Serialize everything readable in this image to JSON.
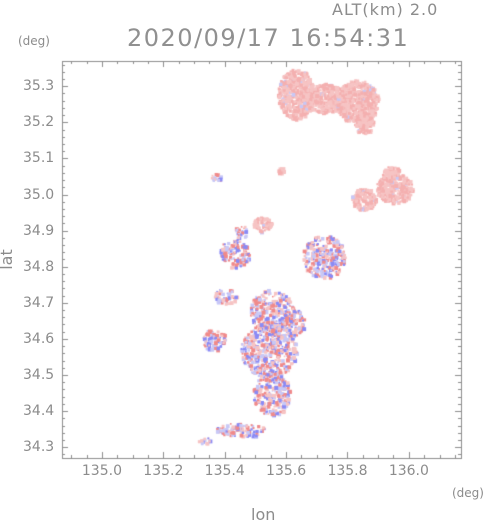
{
  "header": {
    "altitude_label": "ALT(km) 2.0",
    "timestamp": "2020/09/17 16:54:31"
  },
  "axes": {
    "x_unit": "(deg)",
    "y_unit": "(deg)",
    "x_label": "lon",
    "y_label": "lat",
    "x_range": [
      134.87,
      136.17
    ],
    "y_range": [
      34.27,
      35.37
    ],
    "x_ticks": [
      135.0,
      135.2,
      135.4,
      135.6,
      135.8,
      136.0
    ],
    "x_tick_labels": [
      "135.0",
      "135.2",
      "135.4",
      "135.6",
      "135.8",
      "136.0"
    ],
    "y_ticks": [
      34.3,
      34.4,
      34.5,
      34.6,
      34.7,
      34.8,
      34.9,
      35.0,
      35.1,
      35.2,
      35.3
    ],
    "y_tick_labels": [
      "34.3",
      "34.4",
      "34.5",
      "34.6",
      "34.7",
      "34.8",
      "34.9",
      "35.0",
      "35.1",
      "35.2",
      "35.3"
    ]
  },
  "colors": {
    "frame": "#8c8c8c",
    "positive": "#f08a8a",
    "positive_light": "#f6c4c4",
    "negative": "#8a8af5",
    "negative_light": "#c8c8f6"
  },
  "echo_regions": [
    {
      "lon": 135.63,
      "lat": 35.28,
      "rlon": 0.06,
      "rlat": 0.07,
      "kind": "smooth"
    },
    {
      "lon": 135.72,
      "lat": 35.27,
      "rlon": 0.07,
      "rlat": 0.04,
      "kind": "smooth"
    },
    {
      "lon": 135.83,
      "lat": 35.26,
      "rlon": 0.07,
      "rlat": 0.06,
      "kind": "smooth"
    },
    {
      "lon": 135.85,
      "lat": 35.2,
      "rlon": 0.03,
      "rlat": 0.03,
      "kind": "smooth"
    },
    {
      "lon": 135.95,
      "lat": 35.02,
      "rlon": 0.06,
      "rlat": 0.04,
      "kind": "smooth"
    },
    {
      "lon": 135.85,
      "lat": 34.99,
      "rlon": 0.04,
      "rlat": 0.03,
      "kind": "smooth"
    },
    {
      "lon": 135.94,
      "lat": 35.06,
      "rlon": 0.03,
      "rlat": 0.02,
      "kind": "smooth"
    },
    {
      "lon": 135.58,
      "lat": 35.07,
      "rlon": 0.01,
      "rlat": 0.01,
      "kind": "smooth"
    },
    {
      "lon": 135.37,
      "lat": 35.05,
      "rlon": 0.02,
      "rlat": 0.01,
      "kind": "speckle"
    },
    {
      "lon": 135.52,
      "lat": 34.92,
      "rlon": 0.03,
      "rlat": 0.02,
      "kind": "smooth"
    },
    {
      "lon": 135.45,
      "lat": 34.9,
      "rlon": 0.02,
      "rlat": 0.02,
      "kind": "speckle"
    },
    {
      "lon": 135.72,
      "lat": 34.83,
      "rlon": 0.07,
      "rlat": 0.06,
      "kind": "speckle"
    },
    {
      "lon": 135.43,
      "lat": 34.84,
      "rlon": 0.05,
      "rlat": 0.04,
      "kind": "speckle"
    },
    {
      "lon": 135.4,
      "lat": 34.72,
      "rlon": 0.04,
      "rlat": 0.02,
      "kind": "speckle"
    },
    {
      "lon": 135.55,
      "lat": 34.68,
      "rlon": 0.07,
      "rlat": 0.06,
      "kind": "speckle"
    },
    {
      "lon": 135.54,
      "lat": 34.57,
      "rlon": 0.09,
      "rlat": 0.08,
      "kind": "speckle"
    },
    {
      "lon": 135.55,
      "lat": 34.45,
      "rlon": 0.06,
      "rlat": 0.06,
      "kind": "speckle"
    },
    {
      "lon": 135.62,
      "lat": 34.65,
      "rlon": 0.04,
      "rlat": 0.04,
      "kind": "speckle"
    },
    {
      "lon": 135.36,
      "lat": 34.6,
      "rlon": 0.04,
      "rlat": 0.03,
      "kind": "speckle"
    },
    {
      "lon": 135.45,
      "lat": 34.35,
      "rlon": 0.08,
      "rlat": 0.02,
      "kind": "speckle"
    },
    {
      "lon": 135.33,
      "lat": 34.32,
      "rlon": 0.02,
      "rlat": 0.01,
      "kind": "speckle"
    }
  ]
}
